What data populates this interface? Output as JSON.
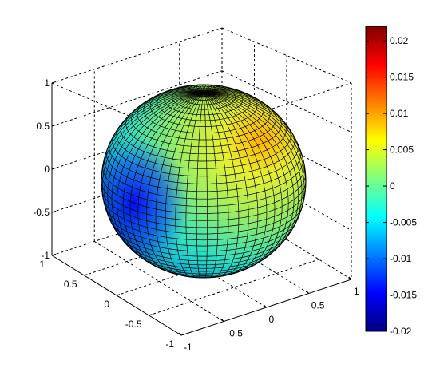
{
  "chart_data": {
    "type": "surface",
    "surface": {
      "shape": "unit-sphere",
      "mesh": "dense-black-wireframe",
      "colormap": "jet",
      "color_variable": "scalar field on sphere (max near upper-right, min near left)",
      "color_value_range": [
        -0.02,
        0.02
      ]
    },
    "axes": {
      "x": {
        "range": [
          -1,
          1
        ],
        "ticks": [
          -1,
          -0.5,
          0,
          0.5,
          1
        ],
        "tick_labels": [
          "-1",
          "-0.5",
          "0",
          "0.5",
          "1"
        ]
      },
      "y": {
        "range": [
          -1,
          1
        ],
        "ticks": [
          -1,
          -0.5,
          0,
          0.5,
          1
        ],
        "tick_labels": [
          "-1",
          "-0.5",
          "0",
          "0.5",
          "1"
        ]
      },
      "z": {
        "range": [
          -1,
          1
        ],
        "ticks": [
          -1,
          -0.5,
          0,
          0.5,
          1
        ],
        "tick_labels": [
          "-1",
          "-0.5",
          "0",
          "0.5",
          "1"
        ]
      },
      "box": "dashed",
      "grid": true
    },
    "colorbar": {
      "placement": "right",
      "range": [
        -0.02,
        0.022
      ],
      "ticks": [
        0.02,
        0.015,
        0.01,
        0.005,
        0,
        -0.005,
        -0.01,
        -0.015,
        -0.02
      ],
      "tick_labels": [
        "0.02",
        "0.015",
        "0.01",
        "0.005",
        "0",
        "-0.005",
        "-0.01",
        "-0.015",
        "-0.02"
      ]
    },
    "colormap_stops": [
      "#00007f",
      "#0000ff",
      "#007fff",
      "#00ffff",
      "#7fff7f",
      "#ffff00",
      "#ff7f00",
      "#ff0000",
      "#7f0000"
    ]
  }
}
